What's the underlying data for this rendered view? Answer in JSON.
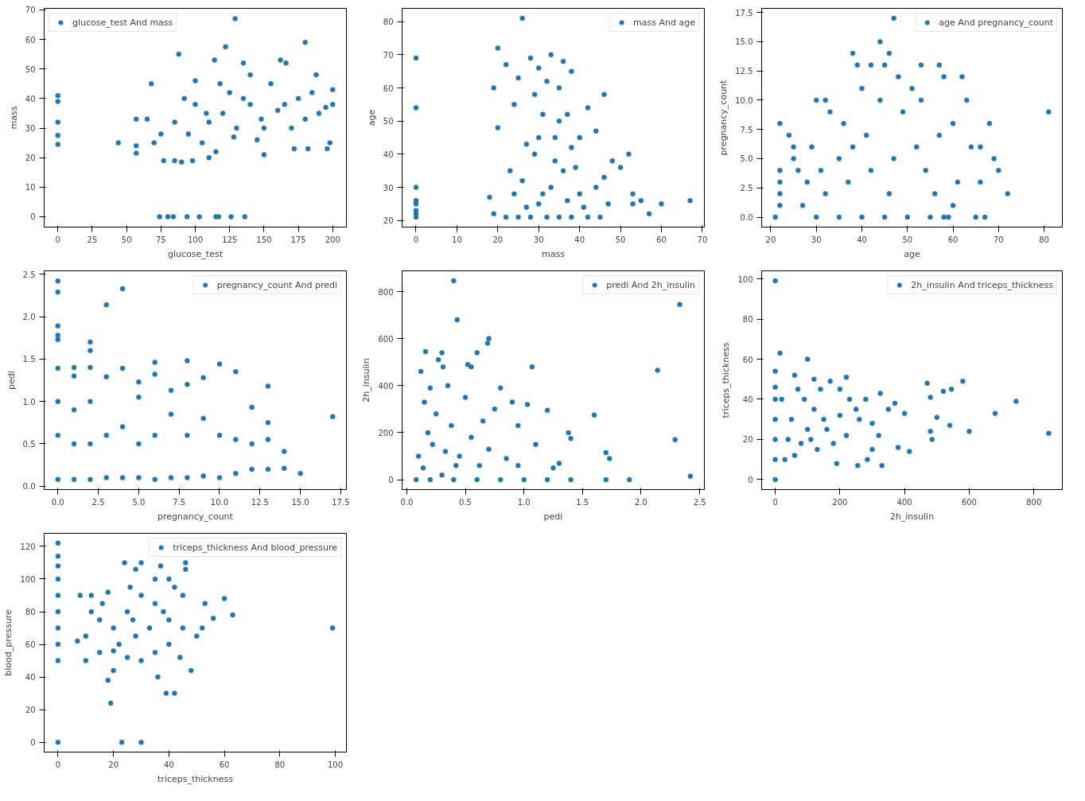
{
  "chart_data": [
    {
      "type": "scatter",
      "xlabel": "glucose_test",
      "ylabel": "mass",
      "xlim": [
        -10,
        210
      ],
      "ylim": [
        -3.5,
        70.5
      ],
      "xticks": [
        0,
        25,
        50,
        75,
        100,
        125,
        150,
        175,
        200
      ],
      "yticks": [
        0,
        10,
        20,
        30,
        40,
        50,
        60,
        70
      ],
      "grid": false,
      "legend": "top left",
      "marker": "circle",
      "series": [
        {
          "name": "glucose_test And mass",
          "color": "#1f77b4",
          "x": [
            0,
            0,
            0,
            0,
            0,
            44,
            57,
            57,
            57,
            74,
            80,
            84,
            94,
            103,
            115,
            117,
            126,
            136,
            129,
            180,
            122,
            88,
            114,
            135,
            162,
            166,
            196,
            200,
            68,
            77,
            85,
            90,
            98,
            110,
            150,
            172,
            182,
            198,
            100,
            118,
            140,
            188,
            150,
            130,
            110,
            95,
            120,
            105,
            140,
            160,
            175,
            190,
            85,
            75,
            65,
            100,
            125,
            145,
            115,
            135,
            170,
            155,
            185,
            195,
            180,
            70,
            92,
            108,
            128,
            148,
            165,
            200
          ],
          "values": [
            41,
            39,
            32,
            27.5,
            24.5,
            25,
            24,
            21.5,
            33,
            0,
            0,
            0,
            0,
            0,
            0,
            0,
            0,
            0,
            67,
            59,
            57.5,
            55,
            53,
            52,
            53,
            52,
            23,
            43,
            45,
            19,
            19,
            18.5,
            19,
            20,
            21,
            23,
            23,
            25,
            46,
            45,
            48,
            48,
            30,
            30,
            32,
            28,
            35,
            25,
            38,
            36,
            40,
            35,
            32,
            28,
            33,
            38,
            42,
            26,
            22,
            40,
            30,
            45,
            42,
            37,
            33,
            25,
            40,
            35,
            27,
            33,
            38,
            38
          ]
        }
      ]
    },
    {
      "type": "scatter",
      "xlabel": "mass",
      "ylabel": "age",
      "xlim": [
        -3.4,
        70.5
      ],
      "ylim": [
        18,
        84
      ],
      "xticks": [
        0,
        10,
        20,
        30,
        40,
        50,
        60,
        70
      ],
      "yticks": [
        20,
        30,
        40,
        50,
        60,
        70,
        80
      ],
      "grid": false,
      "legend": "top right",
      "marker": "circle",
      "series": [
        {
          "name": "mass And age",
          "color": "#1f77b4",
          "x": [
            0,
            0,
            0,
            0,
            0,
            0,
            0,
            0,
            26,
            20,
            33,
            28,
            36,
            22,
            30,
            38,
            25,
            32,
            35,
            46,
            19,
            29,
            42,
            24,
            31,
            37,
            20,
            44,
            40,
            34,
            27,
            50,
            52,
            48,
            53,
            53,
            55,
            57,
            60,
            67,
            18,
            19,
            22,
            25,
            28,
            32,
            35,
            38,
            42,
            45,
            30,
            33,
            36,
            26,
            40,
            44,
            23,
            29,
            34,
            38,
            31,
            27,
            37,
            41,
            47,
            24,
            46,
            35,
            30,
            39
          ],
          "values": [
            69,
            54,
            30,
            26,
            25,
            23,
            22,
            21,
            81,
            72,
            70,
            69,
            68,
            67,
            66,
            65,
            63,
            62,
            60,
            58,
            60,
            58,
            54,
            55,
            52,
            52,
            48,
            47,
            45,
            45,
            43,
            36,
            40,
            38,
            28,
            25,
            26,
            22,
            25,
            26,
            27,
            22,
            21,
            21,
            21,
            21,
            21,
            21,
            21,
            21,
            25,
            30,
            35,
            32,
            28,
            30,
            35,
            40,
            38,
            42,
            28,
            24,
            26,
            24,
            25,
            28,
            33,
            50,
            45,
            36
          ]
        }
      ]
    },
    {
      "type": "scatter",
      "xlabel": "age",
      "ylabel": "pregnancy_count",
      "xlim": [
        18,
        84
      ],
      "ylim": [
        -0.85,
        17.85
      ],
      "xticks": [
        20,
        30,
        40,
        50,
        60,
        70,
        80
      ],
      "yticks": [
        {
          "value": 0,
          "label": "0.0"
        },
        {
          "value": 2.5,
          "label": "2.5"
        },
        {
          "value": 5,
          "label": "5.0"
        },
        {
          "value": 7.5,
          "label": "7.5"
        },
        {
          "value": 10,
          "label": "10.0"
        },
        {
          "value": 12.5,
          "label": "12.5"
        },
        {
          "value": 15,
          "label": "15.0"
        },
        {
          "value": 17.5,
          "label": "17.5"
        }
      ],
      "grid": false,
      "legend": "top right",
      "marker": "circle",
      "series": [
        {
          "name": "age And pregnancy_count",
          "color": "#1f77b4",
          "x": [
            21,
            22,
            22,
            22,
            22,
            22,
            24,
            25,
            25,
            30,
            32,
            38,
            39,
            44,
            47,
            46,
            42,
            45,
            51,
            53,
            57,
            58,
            62,
            58,
            59,
            65,
            67,
            63,
            68,
            69,
            70,
            72,
            81,
            30,
            35,
            40,
            45,
            50,
            55,
            27,
            32,
            37,
            42,
            47,
            52,
            57,
            60,
            64,
            66,
            61,
            56,
            54,
            49,
            44,
            40,
            36,
            33,
            28,
            26,
            35,
            41,
            48,
            53,
            60,
            66,
            38,
            46,
            31,
            29
          ],
          "values": [
            0,
            1,
            2,
            3,
            4,
            8,
            7,
            6,
            5,
            10,
            10,
            14,
            13,
            15,
            17,
            14,
            13,
            13,
            11,
            13,
            13,
            12,
            12,
            0,
            0,
            0,
            0,
            10,
            8,
            5,
            4,
            2,
            9,
            0,
            0,
            0,
            0,
            0,
            0,
            1,
            2,
            3,
            4,
            5,
            6,
            7,
            8,
            6,
            6,
            3,
            2,
            4,
            9,
            10,
            11,
            8,
            9,
            3,
            4,
            5,
            7,
            12,
            10,
            1,
            3,
            6,
            2,
            4,
            6
          ]
        }
      ]
    },
    {
      "type": "scatter",
      "xlabel": "pregnancy_count",
      "ylabel": "pedi",
      "xlim": [
        -0.85,
        17.85
      ],
      "ylim": [
        -0.04,
        2.54
      ],
      "xticks": [
        {
          "value": 0,
          "label": "0.0"
        },
        {
          "value": 2.5,
          "label": "2.5"
        },
        {
          "value": 5,
          "label": "5.0"
        },
        {
          "value": 7.5,
          "label": "7.5"
        },
        {
          "value": 10,
          "label": "10.0"
        },
        {
          "value": 12.5,
          "label": "12.5"
        },
        {
          "value": 15,
          "label": "15.0"
        },
        {
          "value": 17.5,
          "label": "17.5"
        }
      ],
      "yticks": [
        {
          "value": 0,
          "label": "0.0"
        },
        {
          "value": 0.5,
          "label": "0.5"
        },
        {
          "value": 1,
          "label": "1.0"
        },
        {
          "value": 1.5,
          "label": "1.5"
        },
        {
          "value": 2,
          "label": "2.0"
        },
        {
          "value": 2.5,
          "label": "2.5"
        }
      ],
      "grid": false,
      "legend": "top right",
      "marker": "circle",
      "series": [
        {
          "name": "pregnancy_count And predi",
          "color": "#1f77b4",
          "x": [
            0,
            0,
            0,
            0,
            0,
            0,
            0,
            0,
            0,
            1,
            1,
            1,
            1,
            1,
            2,
            2,
            2,
            2,
            2,
            2,
            3,
            3,
            3,
            3,
            4,
            4,
            4,
            4,
            5,
            5,
            5,
            5,
            6,
            6,
            6,
            6,
            7,
            7,
            7,
            8,
            8,
            8,
            8,
            9,
            9,
            9,
            10,
            10,
            10,
            11,
            11,
            11,
            12,
            12,
            12,
            13,
            13,
            13,
            13,
            14,
            14,
            15,
            17
          ],
          "values": [
            2.42,
            2.29,
            1.89,
            1.78,
            1.73,
            1.39,
            0.08,
            0.6,
            1.0,
            1.4,
            1.3,
            0.08,
            0.5,
            0.9,
            1.7,
            1.6,
            1.4,
            0.08,
            0.5,
            1.0,
            2.14,
            1.29,
            0.1,
            0.6,
            2.33,
            1.39,
            0.1,
            0.7,
            1.23,
            1.05,
            0.1,
            0.5,
            1.46,
            1.32,
            0.08,
            0.6,
            1.13,
            0.1,
            0.85,
            1.48,
            1.2,
            0.1,
            0.6,
            1.28,
            0.12,
            0.8,
            1.44,
            0.1,
            0.6,
            1.35,
            0.15,
            0.55,
            0.93,
            0.2,
            0.5,
            1.18,
            0.75,
            0.2,
            0.55,
            0.41,
            0.21,
            0.15,
            0.82
          ]
        }
      ]
    },
    {
      "type": "scatter",
      "xlabel": "pedi",
      "ylabel": "2h_insulin",
      "xlim": [
        -0.04,
        2.54
      ],
      "ylim": [
        -42,
        888
      ],
      "xticks": [
        {
          "value": 0,
          "label": "0.0"
        },
        {
          "value": 0.5,
          "label": "0.5"
        },
        {
          "value": 1,
          "label": "1.0"
        },
        {
          "value": 1.5,
          "label": "1.5"
        },
        {
          "value": 2,
          "label": "2.0"
        },
        {
          "value": 2.5,
          "label": "2.5"
        }
      ],
      "yticks": [
        0,
        200,
        400,
        600,
        800
      ],
      "grid": false,
      "legend": "top right",
      "marker": "circle",
      "series": [
        {
          "name": "predi And 2h_insulin",
          "color": "#1f77b4",
          "x": [
            0.08,
            0.2,
            0.4,
            0.6,
            0.8,
            1.0,
            1.2,
            1.4,
            1.7,
            1.9,
            2.42,
            0.4,
            0.43,
            2.33,
            2.14,
            2.29,
            0.7,
            0.69,
            0.6,
            0.52,
            0.55,
            0.3,
            0.16,
            0.27,
            0.31,
            1.07,
            1.6,
            1.7,
            1.73,
            0.12,
            0.15,
            0.2,
            0.35,
            0.8,
            0.9,
            1.03,
            1.2,
            1.38,
            1.4,
            1.1,
            0.95,
            0.75,
            0.5,
            0.25,
            0.18,
            0.1,
            0.14,
            0.3,
            0.45,
            0.55,
            0.62,
            0.7,
            0.85,
            0.95,
            1.25,
            1.3,
            0.22,
            0.38,
            0.65,
            0.33,
            0.42
          ],
          "values": [
            0,
            0,
            0,
            0,
            0,
            0,
            0,
            0,
            0,
            0,
            15,
            846,
            680,
            745,
            465,
            170,
            600,
            580,
            540,
            490,
            480,
            540,
            545,
            510,
            480,
            480,
            275,
            115,
            90,
            460,
            330,
            390,
            400,
            390,
            330,
            320,
            295,
            200,
            175,
            150,
            230,
            300,
            350,
            280,
            200,
            100,
            50,
            20,
            100,
            180,
            60,
            130,
            90,
            60,
            50,
            70,
            150,
            230,
            250,
            120,
            60
          ]
        }
      ]
    },
    {
      "type": "scatter",
      "xlabel": "2h_insulin",
      "ylabel": "triceps_thickness",
      "xlim": [
        -42,
        888
      ],
      "ylim": [
        -5,
        104
      ],
      "xticks": [
        0,
        200,
        400,
        600,
        800
      ],
      "yticks": [
        0,
        20,
        40,
        60,
        80,
        100
      ],
      "grid": false,
      "legend": "top right",
      "marker": "circle",
      "series": [
        {
          "name": "2h_insulin And triceps_thickness",
          "color": "#1f77b4",
          "x": [
            0,
            0,
            0,
            0,
            0,
            0,
            0,
            0,
            15,
            100,
            60,
            220,
            170,
            580,
            470,
            545,
            520,
            480,
            680,
            745,
            846,
            600,
            540,
            500,
            480,
            485,
            415,
            400,
            380,
            370,
            325,
            330,
            255,
            285,
            320,
            300,
            250,
            230,
            200,
            150,
            120,
            100,
            80,
            60,
            40,
            20,
            30,
            50,
            70,
            90,
            110,
            130,
            140,
            160,
            180,
            200,
            220,
            260,
            280,
            300,
            350,
            190,
            120
          ],
          "values": [
            99,
            0,
            54,
            46,
            40,
            30,
            20,
            10,
            63,
            60,
            52,
            51,
            49,
            49,
            48,
            45,
            44,
            41,
            33,
            39,
            23,
            24,
            27,
            31,
            24,
            20,
            14,
            33,
            16,
            38,
            43,
            7,
            7,
            10,
            22,
            28,
            35,
            40,
            45,
            30,
            35,
            25,
            18,
            12,
            20,
            40,
            10,
            30,
            45,
            40,
            20,
            15,
            45,
            25,
            18,
            32,
            22,
            30,
            40,
            15,
            35,
            8,
            50
          ]
        }
      ]
    },
    {
      "type": "scatter",
      "xlabel": "triceps_thickness",
      "ylabel": "blood_pressure",
      "xlim": [
        -5,
        104
      ],
      "ylim": [
        -6,
        128
      ],
      "xticks": [
        0,
        20,
        40,
        60,
        80,
        100
      ],
      "yticks": [
        0,
        20,
        40,
        60,
        80,
        100,
        120
      ],
      "grid": false,
      "legend": "top right",
      "marker": "circle",
      "series": [
        {
          "name": "triceps_thickness And blood_pressure",
          "color": "#1f77b4",
          "x": [
            0,
            0,
            0,
            0,
            0,
            0,
            0,
            0,
            0,
            0,
            23,
            30,
            99,
            19,
            18,
            20,
            36,
            39,
            42,
            7,
            10,
            12,
            15,
            18,
            24,
            30,
            46,
            46,
            28,
            37,
            35,
            40,
            53,
            56,
            60,
            63,
            52,
            50,
            48,
            44,
            40,
            35,
            30,
            25,
            22,
            20,
            15,
            10,
            12,
            25,
            30,
            35,
            40,
            45,
            45,
            28,
            33,
            38,
            26,
            42,
            8,
            16,
            20,
            27
          ],
          "values": [
            122,
            114,
            108,
            100,
            90,
            80,
            70,
            60,
            50,
            0,
            0,
            0,
            70,
            24,
            38,
            44,
            40,
            30,
            30,
            62,
            50,
            90,
            55,
            92,
            110,
            110,
            110,
            106,
            106,
            108,
            100,
            100,
            85,
            76,
            88,
            78,
            70,
            65,
            44,
            52,
            60,
            55,
            50,
            52,
            60,
            70,
            75,
            65,
            80,
            80,
            90,
            85,
            75,
            90,
            70,
            65,
            70,
            80,
            95,
            95,
            90,
            85,
            56,
            75
          ]
        }
      ]
    }
  ]
}
